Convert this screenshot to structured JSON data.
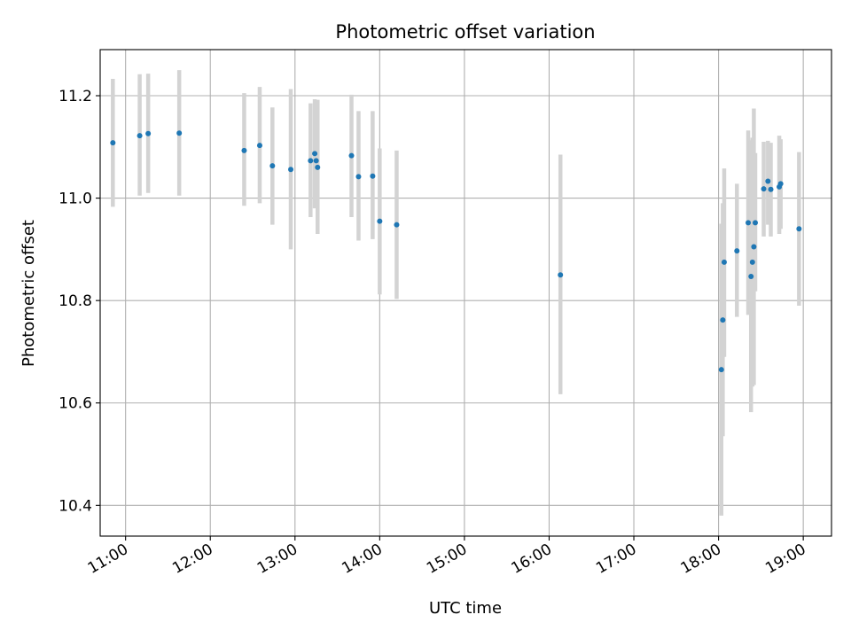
{
  "chart_data": {
    "type": "scatter",
    "title": "Photometric offset variation",
    "xlabel": "UTC time",
    "ylabel": "Photometric offset",
    "x_unit": "UTC time (HH:MM)",
    "xlim": [
      "10:42",
      "19:20"
    ],
    "ylim": [
      10.34,
      11.29
    ],
    "x_ticks": [
      "11:00",
      "12:00",
      "13:00",
      "14:00",
      "15:00",
      "16:00",
      "17:00",
      "18:00",
      "19:00"
    ],
    "y_ticks": [
      "10.4",
      "10.6",
      "10.8",
      "11.0",
      "11.2"
    ],
    "grid": true,
    "point_color": "#1f77b4",
    "errorbar_color": "#d3d3d3",
    "series": [
      {
        "points": [
          {
            "t": "10:51",
            "y": 11.108,
            "lo": 10.983,
            "hi": 11.233
          },
          {
            "t": "11:10",
            "y": 11.122,
            "lo": 11.005,
            "hi": 11.242
          },
          {
            "t": "11:16",
            "y": 11.126,
            "lo": 11.01,
            "hi": 11.243
          },
          {
            "t": "11:38",
            "y": 11.127,
            "lo": 11.005,
            "hi": 11.25
          },
          {
            "t": "12:24",
            "y": 11.093,
            "lo": 10.985,
            "hi": 11.205
          },
          {
            "t": "12:35",
            "y": 11.103,
            "lo": 10.99,
            "hi": 11.217
          },
          {
            "t": "12:44",
            "y": 11.063,
            "lo": 10.948,
            "hi": 11.177
          },
          {
            "t": "12:57",
            "y": 11.056,
            "lo": 10.9,
            "hi": 11.213
          },
          {
            "t": "13:11",
            "y": 11.073,
            "lo": 10.963,
            "hi": 11.185
          },
          {
            "t": "13:14",
            "y": 11.087,
            "lo": 10.98,
            "hi": 11.193
          },
          {
            "t": "13:15",
            "y": 11.073,
            "lo": 10.99,
            "hi": 11.19
          },
          {
            "t": "13:16",
            "y": 11.06,
            "lo": 10.93,
            "hi": 11.192
          },
          {
            "t": "13:40",
            "y": 11.083,
            "lo": 10.963,
            "hi": 11.202
          },
          {
            "t": "13:45",
            "y": 11.042,
            "lo": 10.917,
            "hi": 11.17
          },
          {
            "t": "13:55",
            "y": 11.043,
            "lo": 10.92,
            "hi": 11.17
          },
          {
            "t": "14:00",
            "y": 10.955,
            "lo": 10.812,
            "hi": 11.097
          },
          {
            "t": "14:12",
            "y": 10.948,
            "lo": 10.803,
            "hi": 11.093
          },
          {
            "t": "16:08",
            "y": 10.85,
            "lo": 10.617,
            "hi": 11.085
          },
          {
            "t": "18:02",
            "y": 10.665,
            "lo": 10.38,
            "hi": 10.95
          },
          {
            "t": "18:03",
            "y": 10.762,
            "lo": 10.535,
            "hi": 10.99
          },
          {
            "t": "18:04",
            "y": 10.875,
            "lo": 10.69,
            "hi": 11.058
          },
          {
            "t": "18:13",
            "y": 10.897,
            "lo": 10.768,
            "hi": 11.028
          },
          {
            "t": "18:21",
            "y": 10.952,
            "lo": 10.772,
            "hi": 11.132
          },
          {
            "t": "18:23",
            "y": 10.847,
            "lo": 10.582,
            "hi": 11.113
          },
          {
            "t": "18:24",
            "y": 10.875,
            "lo": 10.632,
            "hi": 11.118
          },
          {
            "t": "18:25",
            "y": 10.905,
            "lo": 10.635,
            "hi": 11.175
          },
          {
            "t": "18:26",
            "y": 10.952,
            "lo": 10.818,
            "hi": 11.088
          },
          {
            "t": "18:32",
            "y": 11.018,
            "lo": 10.925,
            "hi": 11.11
          },
          {
            "t": "18:35",
            "y": 11.033,
            "lo": 10.948,
            "hi": 11.112
          },
          {
            "t": "18:37",
            "y": 11.017,
            "lo": 10.925,
            "hi": 11.108
          },
          {
            "t": "18:43",
            "y": 11.022,
            "lo": 10.93,
            "hi": 11.122
          },
          {
            "t": "18:44",
            "y": 11.028,
            "lo": 10.94,
            "hi": 11.115
          },
          {
            "t": "18:57",
            "y": 10.94,
            "lo": 10.79,
            "hi": 11.09
          }
        ]
      }
    ]
  }
}
